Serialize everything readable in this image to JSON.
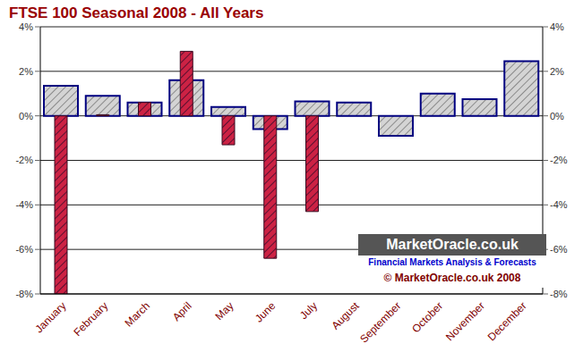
{
  "chart_data": {
    "type": "bar",
    "title": "FTSE 100 Seasonal 2008 - All Years",
    "categories": [
      "January",
      "February",
      "March",
      "April",
      "May",
      "June",
      "July",
      "August",
      "September",
      "October",
      "November",
      "December"
    ],
    "series": [
      {
        "color": "#d4d4d4",
        "values": [
          1.35,
          0.9,
          0.6,
          1.6,
          0.4,
          -0.6,
          0.65,
          0.6,
          -0.9,
          1.0,
          0.75,
          2.45
        ]
      },
      {
        "color": "#cc2244",
        "values": [
          -8,
          0.05,
          0.6,
          2.9,
          -1.3,
          -6.4,
          -4.3,
          null,
          null,
          null,
          null,
          null
        ]
      }
    ],
    "ylim": [
      -8,
      4
    ],
    "yticks": [
      {
        "value": -8,
        "label": "-8%"
      },
      {
        "value": -6,
        "label": "-6%"
      },
      {
        "value": -4,
        "label": "-4%"
      },
      {
        "value": -2,
        "label": "-2%"
      },
      {
        "value": 0,
        "label": "0%"
      },
      {
        "value": 2,
        "label": "2%"
      },
      {
        "value": 4,
        "label": "4%"
      }
    ],
    "y2lim": [
      -8,
      4
    ],
    "y2ticks": [
      {
        "value": -8,
        "label": "-8%"
      },
      {
        "value": -6,
        "label": "-6%"
      },
      {
        "value": -4,
        "label": "-4%"
      },
      {
        "value": -2,
        "label": "-2%"
      },
      {
        "value": 0,
        "label": "0%"
      },
      {
        "value": 2,
        "label": "2%"
      },
      {
        "value": 4,
        "label": "4%"
      }
    ],
    "grid": true,
    "annotations": [
      "MarketOracle.co.uk",
      "Financial Markets Analysis & Forecasts",
      "© MarketOracle.co.uk 2008"
    ]
  }
}
